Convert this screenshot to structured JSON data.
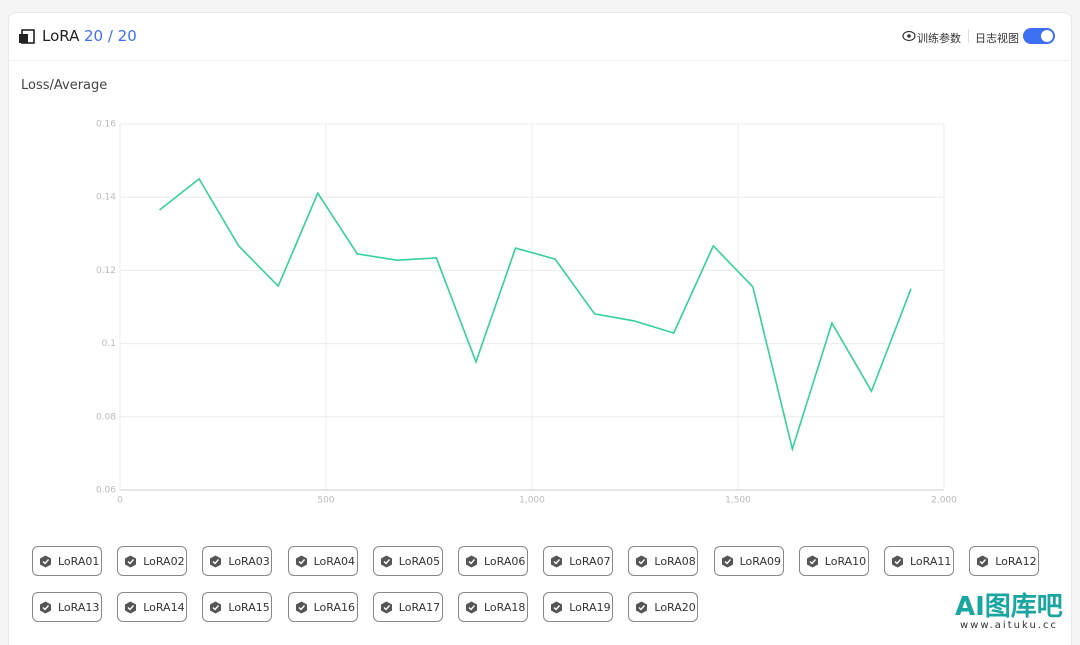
{
  "header": {
    "title": "LoRA",
    "count": "20 / 20",
    "params_button": "训练参数",
    "log_view_label": "日志视图",
    "log_view_on": true
  },
  "chart_data": {
    "type": "line",
    "title": "Loss/Average",
    "x": [
      96,
      192,
      288,
      384,
      480,
      576,
      672,
      768,
      864,
      960,
      1056,
      1152,
      1248,
      1344,
      1440,
      1536,
      1632,
      1728,
      1824,
      1920
    ],
    "values": [
      0.1365,
      0.145,
      0.1267,
      0.1157,
      0.1411,
      0.1245,
      0.1228,
      0.1234,
      0.095,
      0.1261,
      0.1231,
      0.1081,
      0.1062,
      0.1029,
      0.1267,
      0.1155,
      0.0712,
      0.1056,
      0.087,
      0.115
    ],
    "color": "#33d19b",
    "xlim": [
      0,
      2000
    ],
    "xticks": [
      0,
      500,
      {
        "value": 1000,
        "label": "1,000"
      },
      {
        "value": 1500,
        "label": "1,500"
      },
      {
        "value": 2000,
        "label": "2,000"
      }
    ],
    "ylim": [
      0.06,
      0.16
    ],
    "yticks": [
      0.06,
      0.08,
      0.1,
      0.12,
      0.14,
      0.16
    ],
    "grid": true
  },
  "lora_list": [
    "LoRA01",
    "LoRA02",
    "LoRA03",
    "LoRA04",
    "LoRA05",
    "LoRA06",
    "LoRA07",
    "LoRA08",
    "LoRA09",
    "LoRA10",
    "LoRA11",
    "LoRA12",
    "LoRA13",
    "LoRA14",
    "LoRA15",
    "LoRA16",
    "LoRA17",
    "LoRA18",
    "LoRA19",
    "LoRA20"
  ],
  "watermark": {
    "text": "AI图库吧",
    "url": "www.aituku.cc"
  }
}
